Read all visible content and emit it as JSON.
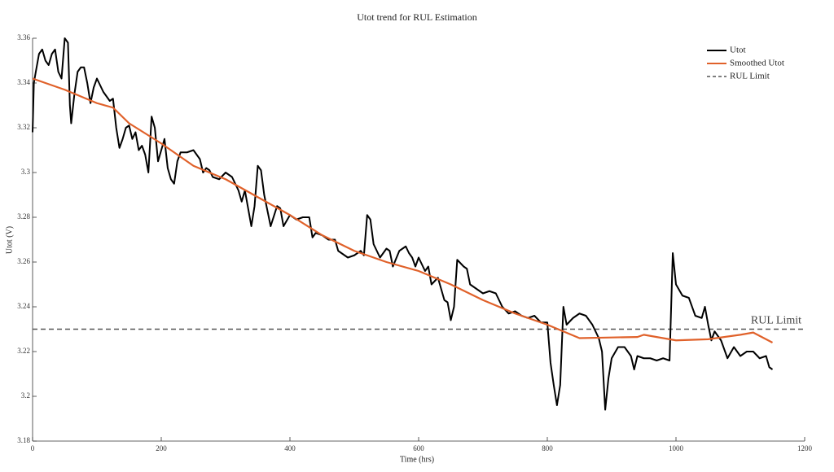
{
  "chart_data": {
    "type": "line",
    "title": "Utot trend for RUL Estimation",
    "x_label": "Time (hrs)",
    "y_label": "Utot (V)",
    "xlim": [
      0,
      1200
    ],
    "xticks": [
      0,
      200,
      400,
      600,
      800,
      1000,
      1200
    ],
    "ylim": [
      3.18,
      3.36
    ],
    "yticks": [
      3.18,
      3.2,
      3.22,
      3.24,
      3.26,
      3.28,
      3.3,
      3.32,
      3.34,
      3.36
    ],
    "grid": false,
    "legend": "top-right",
    "series": [
      {
        "name": "Utot",
        "color": "#000000",
        "x": [
          0,
          2,
          5,
          10,
          15,
          20,
          25,
          30,
          35,
          40,
          45,
          50,
          55,
          58,
          60,
          65,
          70,
          75,
          80,
          85,
          90,
          95,
          100,
          110,
          120,
          125,
          130,
          135,
          140,
          145,
          150,
          155,
          160,
          165,
          170,
          175,
          180,
          185,
          190,
          195,
          200,
          205,
          210,
          215,
          220,
          225,
          230,
          240,
          250,
          260,
          265,
          270,
          275,
          280,
          290,
          300,
          310,
          320,
          325,
          330,
          340,
          345,
          350,
          355,
          360,
          370,
          380,
          385,
          390,
          400,
          410,
          420,
          430,
          435,
          440,
          450,
          460,
          470,
          475,
          480,
          490,
          500,
          505,
          510,
          515,
          520,
          525,
          530,
          540,
          550,
          555,
          560,
          570,
          580,
          585,
          590,
          595,
          600,
          610,
          615,
          620,
          630,
          640,
          645,
          650,
          655,
          660,
          670,
          675,
          680,
          690,
          700,
          710,
          720,
          730,
          740,
          750,
          760,
          770,
          780,
          790,
          800,
          805,
          810,
          815,
          820,
          825,
          830,
          840,
          850,
          860,
          870,
          880,
          885,
          890,
          895,
          900,
          910,
          920,
          930,
          935,
          940,
          950,
          960,
          970,
          980,
          990,
          995,
          1000,
          1010,
          1020,
          1030,
          1040,
          1045,
          1050,
          1055,
          1060,
          1070,
          1080,
          1090,
          1100,
          1110,
          1120,
          1130,
          1140,
          1145,
          1150
        ],
        "values": [
          3.318,
          3.34,
          3.345,
          3.353,
          3.355,
          3.35,
          3.348,
          3.353,
          3.355,
          3.345,
          3.342,
          3.36,
          3.358,
          3.33,
          3.322,
          3.335,
          3.345,
          3.347,
          3.347,
          3.34,
          3.331,
          3.338,
          3.342,
          3.336,
          3.332,
          3.333,
          3.32,
          3.311,
          3.315,
          3.32,
          3.321,
          3.315,
          3.318,
          3.31,
          3.312,
          3.308,
          3.3,
          3.325,
          3.32,
          3.305,
          3.31,
          3.315,
          3.302,
          3.297,
          3.295,
          3.305,
          3.309,
          3.309,
          3.31,
          3.306,
          3.3,
          3.302,
          3.301,
          3.298,
          3.297,
          3.3,
          3.298,
          3.292,
          3.287,
          3.292,
          3.276,
          3.285,
          3.303,
          3.301,
          3.29,
          3.276,
          3.285,
          3.284,
          3.276,
          3.281,
          3.279,
          3.28,
          3.28,
          3.271,
          3.273,
          3.272,
          3.27,
          3.27,
          3.265,
          3.264,
          3.262,
          3.263,
          3.264,
          3.265,
          3.263,
          3.281,
          3.279,
          3.268,
          3.262,
          3.266,
          3.265,
          3.258,
          3.265,
          3.267,
          3.264,
          3.262,
          3.258,
          3.262,
          3.256,
          3.258,
          3.25,
          3.253,
          3.243,
          3.242,
          3.234,
          3.24,
          3.261,
          3.258,
          3.257,
          3.25,
          3.248,
          3.246,
          3.247,
          3.246,
          3.24,
          3.237,
          3.238,
          3.236,
          3.235,
          3.236,
          3.233,
          3.233,
          3.215,
          3.205,
          3.196,
          3.205,
          3.24,
          3.232,
          3.235,
          3.237,
          3.236,
          3.232,
          3.226,
          3.22,
          3.194,
          3.208,
          3.217,
          3.222,
          3.222,
          3.218,
          3.212,
          3.218,
          3.217,
          3.217,
          3.216,
          3.217,
          3.216,
          3.264,
          3.25,
          3.245,
          3.244,
          3.236,
          3.235,
          3.24,
          3.232,
          3.225,
          3.229,
          3.225,
          3.217,
          3.222,
          3.218,
          3.22,
          3.22,
          3.217,
          3.218,
          3.213,
          3.212
        ]
      },
      {
        "name": "Smoothed Utot",
        "color": "#e0612a",
        "x": [
          0,
          50,
          100,
          125,
          150,
          200,
          250,
          300,
          350,
          400,
          450,
          500,
          550,
          600,
          650,
          700,
          750,
          800,
          850,
          900,
          940,
          950,
          1000,
          1050,
          1100,
          1120,
          1150
        ],
        "values": [
          3.342,
          3.337,
          3.331,
          3.329,
          3.322,
          3.313,
          3.303,
          3.297,
          3.289,
          3.281,
          3.272,
          3.265,
          3.26,
          3.256,
          3.25,
          3.243,
          3.237,
          3.232,
          3.226,
          3.2263,
          3.2265,
          3.2275,
          3.225,
          3.2255,
          3.2275,
          3.2285,
          3.224
        ]
      }
    ],
    "reference_lines": [
      {
        "name": "RUL Limit",
        "label": "RUL Limit",
        "value": 3.23,
        "color": "#555555",
        "dash": true
      }
    ]
  }
}
